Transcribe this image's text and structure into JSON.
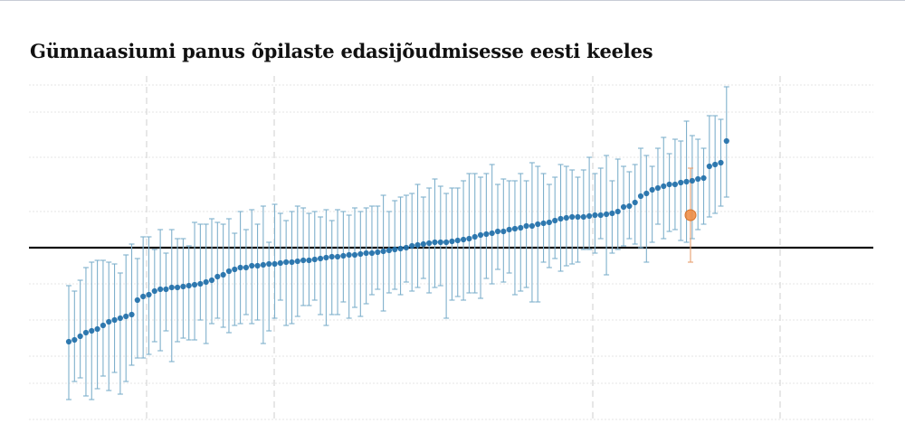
{
  "chart_data": {
    "type": "scatter",
    "title": "Gümnaasiumi panus õpilaste edasijõudmisesse eesti keeles",
    "xlabel": "",
    "ylabel": "",
    "ylim": [
      -1.0,
      0.9
    ],
    "reference_line": 0,
    "grid": true,
    "legend": "none",
    "colors": {
      "point": "#1f6fa9",
      "error_bar": "#7fb0cc",
      "highlight_point": "#ef8a3e",
      "highlight_bar": "#e8a070",
      "reference_line": "#111111",
      "grid": "#e6e6e6",
      "vertical_grid": "#cfcfcf"
    },
    "highlight_index": 116,
    "series": [
      {
        "values": [
          -0.52,
          -0.51,
          -0.49,
          -0.47,
          -0.46,
          -0.45,
          -0.43,
          -0.41,
          -0.4,
          -0.39,
          -0.38,
          -0.37,
          -0.29,
          -0.27,
          -0.26,
          -0.24,
          -0.23,
          -0.23,
          -0.22,
          -0.22,
          -0.215,
          -0.21,
          -0.205,
          -0.2,
          -0.19,
          -0.18,
          -0.16,
          -0.15,
          -0.13,
          -0.12,
          -0.11,
          -0.11,
          -0.1,
          -0.1,
          -0.095,
          -0.09,
          -0.09,
          -0.085,
          -0.08,
          -0.08,
          -0.075,
          -0.07,
          -0.07,
          -0.065,
          -0.06,
          -0.055,
          -0.05,
          -0.05,
          -0.045,
          -0.04,
          -0.04,
          -0.035,
          -0.03,
          -0.03,
          -0.025,
          -0.02,
          -0.015,
          -0.01,
          -0.005,
          0.0,
          0.01,
          0.015,
          0.02,
          0.025,
          0.03,
          0.03,
          0.03,
          0.035,
          0.04,
          0.045,
          0.05,
          0.06,
          0.07,
          0.075,
          0.08,
          0.09,
          0.09,
          0.1,
          0.105,
          0.11,
          0.12,
          0.12,
          0.13,
          0.135,
          0.14,
          0.15,
          0.16,
          0.165,
          0.17,
          0.17,
          0.17,
          0.175,
          0.18,
          0.18,
          0.185,
          0.19,
          0.2,
          0.225,
          0.23,
          0.25,
          0.285,
          0.3,
          0.32,
          0.33,
          0.34,
          0.35,
          0.35,
          0.36,
          0.365,
          0.37,
          0.38,
          0.385,
          0.45,
          0.46,
          0.47,
          0.59,
          0.18
        ],
        "ci_low": [
          -0.84,
          -0.74,
          -0.72,
          -0.82,
          -0.84,
          -0.78,
          -0.71,
          -0.79,
          -0.69,
          -0.81,
          -0.74,
          -0.65,
          -0.61,
          -0.61,
          -0.59,
          -0.52,
          -0.57,
          -0.46,
          -0.63,
          -0.52,
          -0.5,
          -0.51,
          -0.51,
          -0.4,
          -0.53,
          -0.42,
          -0.39,
          -0.44,
          -0.47,
          -0.43,
          -0.42,
          -0.37,
          -0.42,
          -0.4,
          -0.53,
          -0.46,
          -0.39,
          -0.29,
          -0.43,
          -0.42,
          -0.38,
          -0.32,
          -0.32,
          -0.29,
          -0.37,
          -0.43,
          -0.37,
          -0.37,
          -0.3,
          -0.39,
          -0.33,
          -0.38,
          -0.31,
          -0.26,
          -0.23,
          -0.35,
          -0.25,
          -0.23,
          -0.26,
          -0.19,
          -0.24,
          -0.22,
          -0.17,
          -0.25,
          -0.22,
          -0.21,
          -0.39,
          -0.29,
          -0.27,
          -0.29,
          -0.25,
          -0.25,
          -0.28,
          -0.17,
          -0.2,
          -0.12,
          -0.19,
          -0.14,
          -0.26,
          -0.24,
          -0.22,
          -0.3,
          -0.3,
          -0.08,
          -0.11,
          -0.06,
          -0.13,
          -0.1,
          -0.09,
          -0.08,
          -0.01,
          -0.01,
          -0.03,
          0.05,
          -0.15,
          -0.03,
          -0.01,
          0.01,
          0.05,
          0.02,
          0.0,
          -0.08,
          0.03,
          0.13,
          0.05,
          0.09,
          0.1,
          0.04,
          0.03,
          0.05,
          0.1,
          0.13,
          0.17,
          0.19,
          0.23,
          0.28,
          -0.08
        ],
        "ci_high": [
          -0.21,
          -0.24,
          -0.18,
          -0.11,
          -0.08,
          -0.07,
          -0.07,
          -0.08,
          -0.09,
          -0.14,
          -0.04,
          0.02,
          -0.06,
          0.06,
          0.06,
          -0.01,
          0.1,
          -0.03,
          0.1,
          0.05,
          0.05,
          0.01,
          0.14,
          0.13,
          0.13,
          0.16,
          0.14,
          0.13,
          0.16,
          0.08,
          0.2,
          0.1,
          0.21,
          0.13,
          0.23,
          0.03,
          0.24,
          0.19,
          0.15,
          0.2,
          0.23,
          0.22,
          0.19,
          0.2,
          0.17,
          0.21,
          0.15,
          0.21,
          0.2,
          0.18,
          0.22,
          0.2,
          0.22,
          0.23,
          0.23,
          0.29,
          0.2,
          0.26,
          0.28,
          0.29,
          0.3,
          0.35,
          0.28,
          0.33,
          0.38,
          0.34,
          0.3,
          0.33,
          0.33,
          0.37,
          0.41,
          0.41,
          0.39,
          0.41,
          0.46,
          0.35,
          0.38,
          0.37,
          0.37,
          0.41,
          0.37,
          0.47,
          0.45,
          0.41,
          0.35,
          0.39,
          0.46,
          0.45,
          0.43,
          0.39,
          0.43,
          0.5,
          0.41,
          0.44,
          0.51,
          0.37,
          0.49,
          0.45,
          0.42,
          0.46,
          0.55,
          0.51,
          0.45,
          0.55,
          0.61,
          0.52,
          0.6,
          0.59,
          0.7,
          0.62,
          0.6,
          0.55,
          0.73,
          0.73,
          0.71,
          0.89,
          0.44
        ]
      }
    ]
  }
}
